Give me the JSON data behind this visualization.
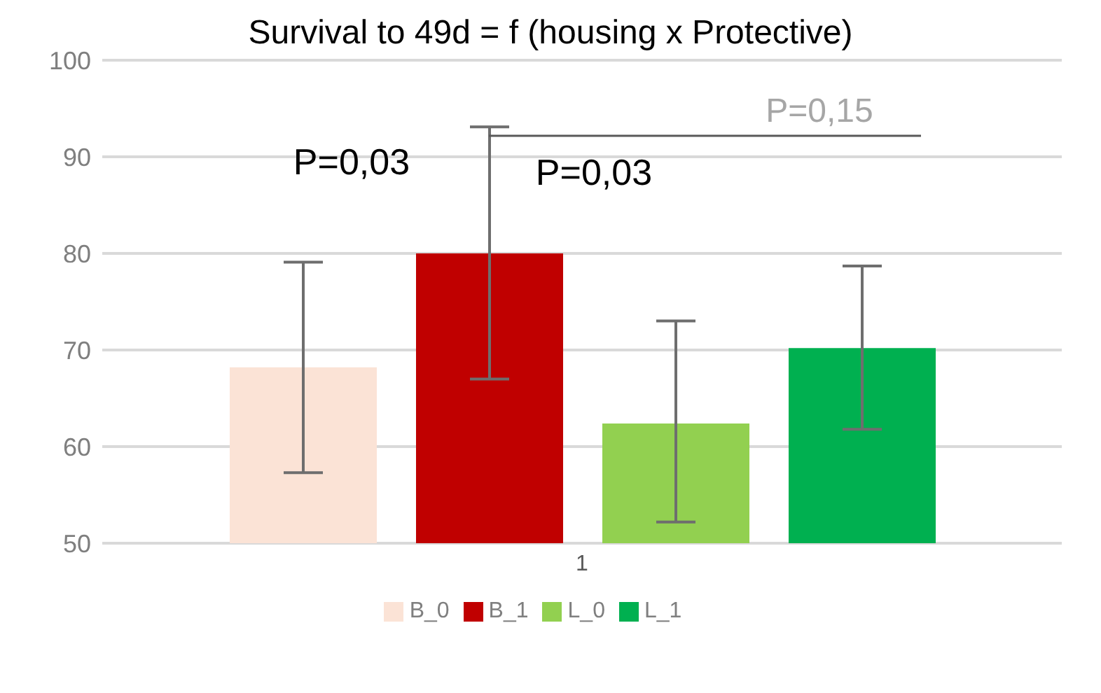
{
  "chart_data": {
    "type": "bar",
    "title": "Survival to 49d = f (housing x Protective)",
    "categories": [
      "1"
    ],
    "series": [
      {
        "name": "B_0",
        "color": "#fbe3d6",
        "values": [
          68.2
        ],
        "errors": [
          [
            57.3,
            79.1
          ]
        ]
      },
      {
        "name": "B_1",
        "color": "#c00000",
        "values": [
          80
        ],
        "errors": [
          [
            67,
            93.1
          ]
        ]
      },
      {
        "name": "L_0",
        "color": "#92d050",
        "values": [
          62.4
        ],
        "errors": [
          [
            52.2,
            73
          ]
        ]
      },
      {
        "name": "L_1",
        "color": "#00b050",
        "values": [
          70.2
        ],
        "errors": [
          [
            61.8,
            78.7
          ]
        ]
      }
    ],
    "ylim": [
      50,
      100
    ],
    "yticks": [
      50,
      60,
      70,
      80,
      90,
      100
    ],
    "grid": "y",
    "legend": "bottom",
    "annotations": [
      "P=0,03",
      "P=0,03",
      "P=0,15"
    ]
  }
}
